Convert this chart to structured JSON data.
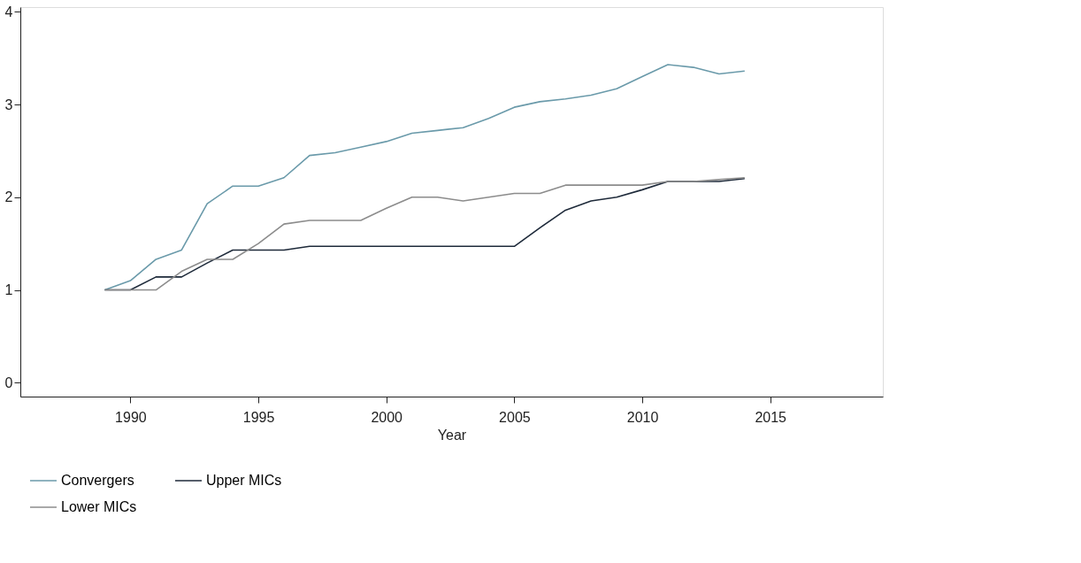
{
  "chart_data": {
    "type": "line",
    "xlabel": "Year",
    "x": [
      1989,
      1990,
      1991,
      1992,
      1993,
      1994,
      1995,
      1996,
      1997,
      1998,
      1999,
      2000,
      2001,
      2002,
      2003,
      2004,
      2005,
      2006,
      2007,
      2008,
      2009,
      2010,
      2011,
      2012,
      2013,
      2014
    ],
    "series": [
      {
        "name": "Convergers",
        "color": "#6a9aaa",
        "values": [
          1.0,
          1.1,
          1.33,
          1.43,
          1.93,
          2.12,
          2.12,
          2.21,
          2.45,
          2.48,
          2.54,
          2.6,
          2.69,
          2.72,
          2.75,
          2.85,
          2.97,
          3.03,
          3.06,
          3.1,
          3.17,
          3.3,
          3.43,
          3.4,
          3.33,
          3.36
        ]
      },
      {
        "name": "Upper MICs",
        "color": "#1e2a3a",
        "values": [
          1.0,
          1.0,
          1.14,
          1.14,
          1.29,
          1.43,
          1.43,
          1.43,
          1.47,
          1.47,
          1.47,
          1.47,
          1.47,
          1.47,
          1.47,
          1.47,
          1.47,
          1.67,
          1.86,
          1.96,
          2.0,
          2.08,
          2.17,
          2.17,
          2.17,
          2.2
        ]
      },
      {
        "name": "Lower MICs",
        "color": "#8c8c8c",
        "values": [
          1.0,
          1.0,
          1.0,
          1.2,
          1.33,
          1.33,
          1.5,
          1.71,
          1.75,
          1.75,
          1.75,
          1.88,
          2.0,
          2.0,
          1.96,
          2.0,
          2.04,
          2.04,
          2.13,
          2.13,
          2.13,
          2.13,
          2.17,
          2.17,
          2.19,
          2.21
        ]
      }
    ],
    "xlim": [
      1985.7,
      2019.4
    ],
    "xticks": [
      1990,
      1995,
      2000,
      2005,
      2010,
      2015
    ],
    "ylim": [
      -0.15,
      4.05
    ],
    "yticks": [
      0,
      1,
      2,
      3,
      4
    ],
    "grid": false,
    "legend": "bottom",
    "marker": "none",
    "line_style": "solid"
  }
}
